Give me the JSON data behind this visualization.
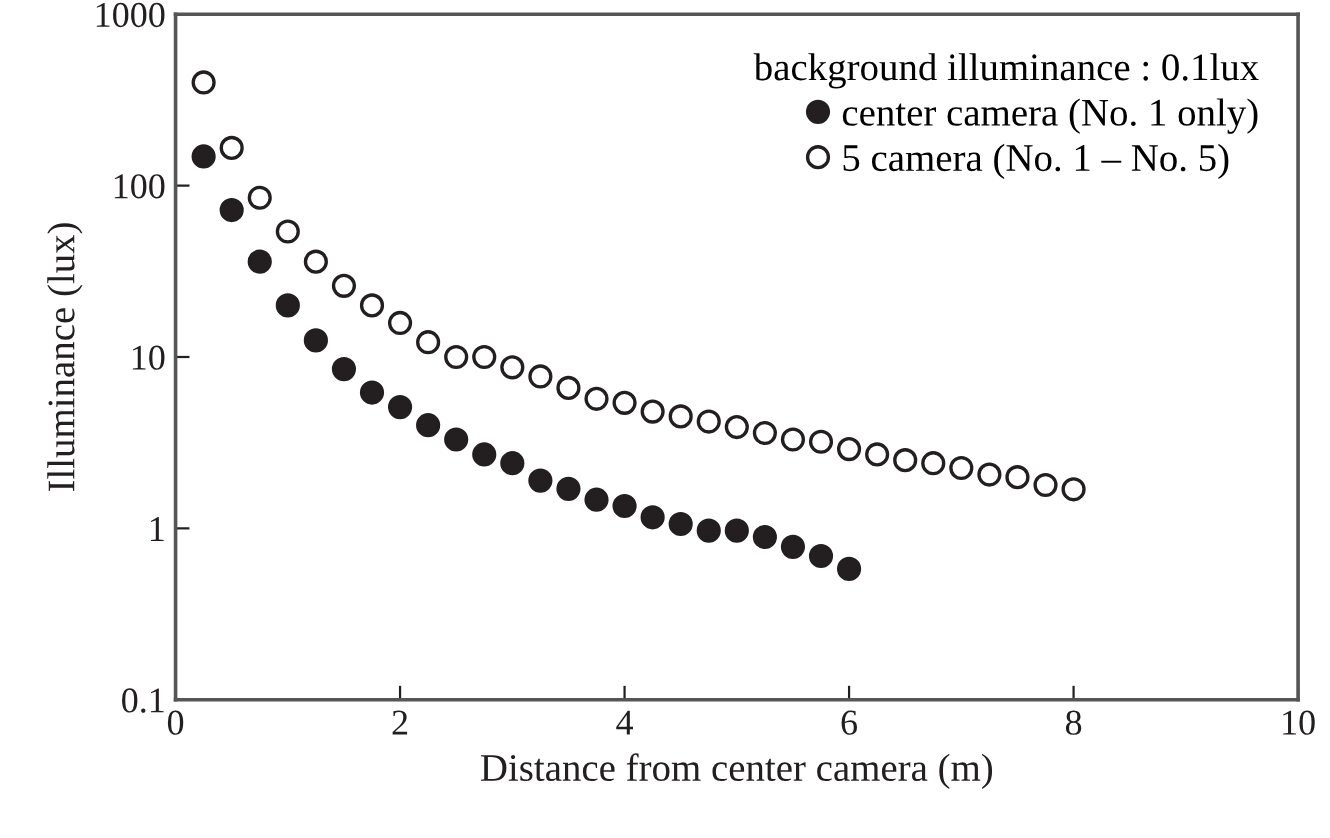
{
  "chart_data": {
    "type": "scatter",
    "xlabel": "Distance from center camera (m)",
    "ylabel": "Illuminance (lux)",
    "legend_title": "background illuminance : 0.1lux",
    "log": "y",
    "xlim": [
      0,
      10
    ],
    "xticks": [
      0,
      2,
      4,
      6,
      8,
      10
    ],
    "ylim": [
      0.1,
      1000
    ],
    "yticks": [
      0.1,
      1,
      10,
      100,
      1000
    ],
    "grid": false,
    "legend": "top right",
    "series": [
      {
        "name": "center camera (No. 1 only)",
        "color": "#231f20",
        "marker": "circle",
        "x": [
          0.25,
          0.5,
          0.75,
          1.0,
          1.25,
          1.5,
          1.75,
          2.0,
          2.25,
          2.5,
          2.75,
          3.0,
          3.25,
          3.5,
          3.75,
          4.0,
          4.25,
          4.5,
          4.75,
          5.0,
          5.25,
          5.5,
          5.75,
          6.0
        ],
        "values": [
          148,
          72,
          36,
          20,
          12.5,
          8.5,
          6.2,
          5.1,
          4.0,
          3.3,
          2.7,
          2.4,
          1.9,
          1.7,
          1.47,
          1.35,
          1.16,
          1.06,
          0.97,
          0.97,
          0.89,
          0.78,
          0.69,
          0.58
        ]
      },
      {
        "name": "5 camera (No. 1 – No. 5)",
        "color": "#ffffff",
        "marker": "circle",
        "x": [
          0.25,
          0.5,
          0.75,
          1.0,
          1.25,
          1.5,
          1.75,
          2.0,
          2.25,
          2.5,
          2.75,
          3.0,
          3.25,
          3.5,
          3.75,
          4.0,
          4.25,
          4.5,
          4.75,
          5.0,
          5.25,
          5.5,
          5.75,
          6.0,
          6.25,
          6.5,
          6.75,
          7.0,
          7.25,
          7.5,
          7.75,
          8.0
        ],
        "values": [
          400,
          166,
          85,
          54,
          36,
          26,
          20,
          15.8,
          12.2,
          10,
          10,
          8.7,
          7.7,
          6.6,
          5.7,
          5.4,
          4.8,
          4.5,
          4.2,
          3.9,
          3.6,
          3.3,
          3.2,
          2.9,
          2.7,
          2.5,
          2.4,
          2.25,
          2.06,
          1.99,
          1.79,
          1.69
        ]
      }
    ]
  }
}
